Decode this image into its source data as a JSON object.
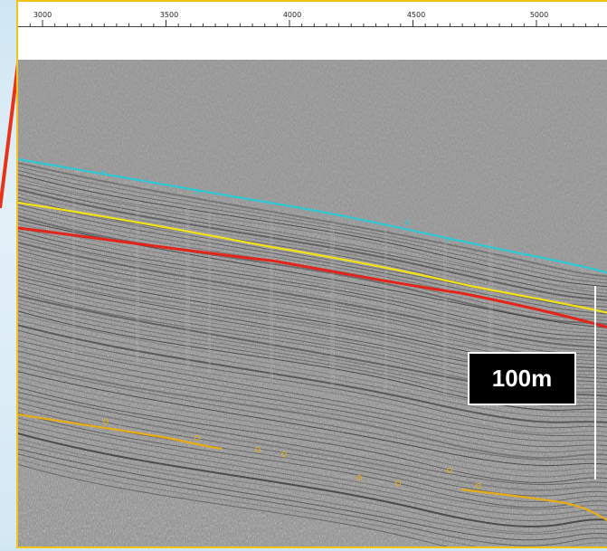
{
  "ruler": {
    "ticks": [
      {
        "label": "3000",
        "value": 3000
      },
      {
        "label": "3500",
        "value": 3500
      },
      {
        "label": "4000",
        "value": 4000
      },
      {
        "label": "4500",
        "value": 4500
      },
      {
        "label": "5000",
        "value": 5000
      }
    ]
  },
  "scale": {
    "label": "100m"
  },
  "colors": {
    "frame": "#f3c21b",
    "seafloor": "#2ec9d4",
    "horizon_yellow": "#f2e218",
    "horizon_red": "#e2241b",
    "deep_reflector": "#e6ad14",
    "pointer": "#e8321a"
  },
  "horizons": [
    {
      "name": "seafloor",
      "color": "#2ec9d4"
    },
    {
      "name": "horizon_yellow",
      "color": "#f2e218"
    },
    {
      "name": "horizon_red",
      "color": "#e2241b"
    },
    {
      "name": "deep_reflector",
      "color": "#e6ad14"
    }
  ]
}
